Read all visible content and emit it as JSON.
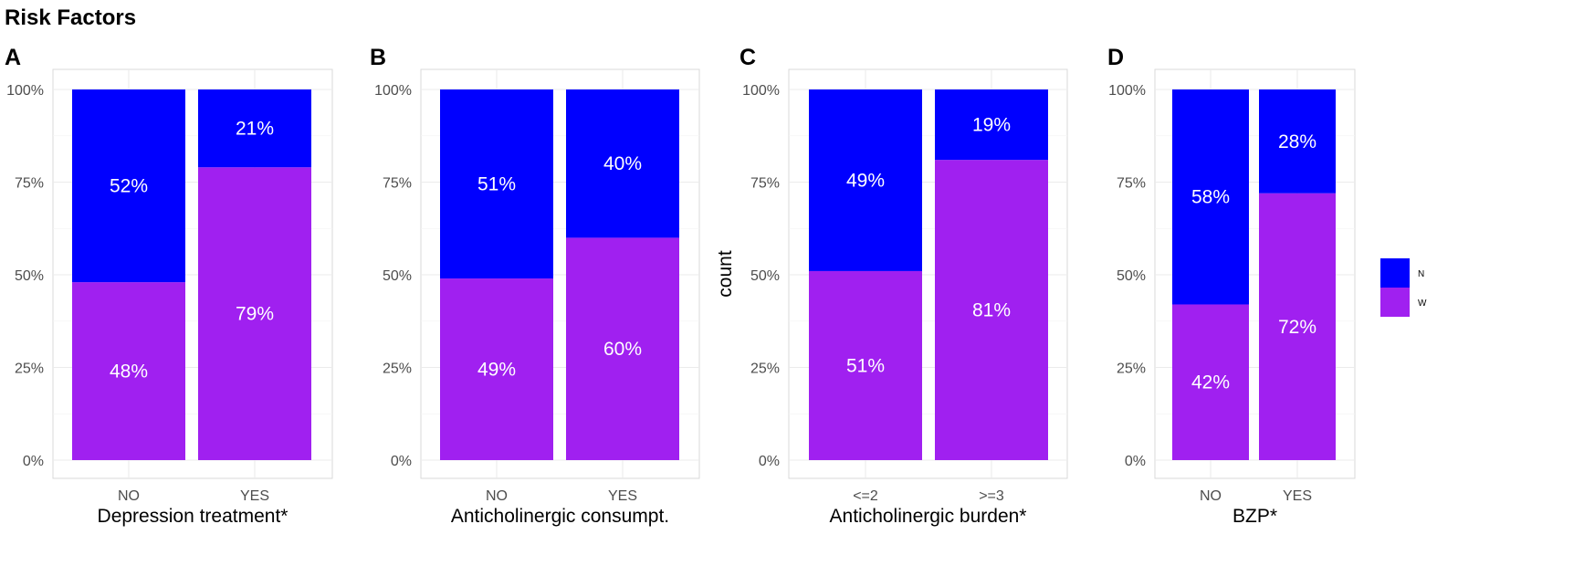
{
  "title": "Risk Factors",
  "legend": {
    "position": "right",
    "entries": [
      {
        "key": "N",
        "color": "#0000ff"
      },
      {
        "key": "W",
        "color": "#a020f0"
      }
    ]
  },
  "chart_data": [
    {
      "type": "bar",
      "stacked": true,
      "panel": "A",
      "xlabel": "Depression treatment*",
      "ylabel": "",
      "categories": [
        "NO",
        "YES"
      ],
      "series": [
        {
          "name": "W",
          "color": "#a020f0",
          "values": [
            48,
            79
          ],
          "labels": [
            "48%",
            "79%"
          ]
        },
        {
          "name": "N",
          "color": "#0000ff",
          "values": [
            52,
            21
          ],
          "labels": [
            "52%",
            "21%"
          ]
        }
      ],
      "ylim": [
        0,
        100
      ],
      "yticks": [
        "0%",
        "25%",
        "50%",
        "75%",
        "100%"
      ],
      "grid": true
    },
    {
      "type": "bar",
      "stacked": true,
      "panel": "B",
      "xlabel": "Anticholinergic consumpt.",
      "ylabel": "",
      "categories": [
        "NO",
        "YES"
      ],
      "series": [
        {
          "name": "W",
          "color": "#a020f0",
          "values": [
            49,
            60
          ],
          "labels": [
            "49%",
            "60%"
          ]
        },
        {
          "name": "N",
          "color": "#0000ff",
          "values": [
            51,
            40
          ],
          "labels": [
            "51%",
            "40%"
          ]
        }
      ],
      "ylim": [
        0,
        100
      ],
      "yticks": [
        "0%",
        "25%",
        "50%",
        "75%",
        "100%"
      ],
      "grid": true
    },
    {
      "type": "bar",
      "stacked": true,
      "panel": "C",
      "xlabel": "Anticholinergic burden*",
      "ylabel": "count",
      "categories": [
        "<=2",
        ">=3"
      ],
      "series": [
        {
          "name": "W",
          "color": "#a020f0",
          "values": [
            51,
            81
          ],
          "labels": [
            "51%",
            "81%"
          ]
        },
        {
          "name": "N",
          "color": "#0000ff",
          "values": [
            49,
            19
          ],
          "labels": [
            "49%",
            "19%"
          ]
        }
      ],
      "ylim": [
        0,
        100
      ],
      "yticks": [
        "0%",
        "25%",
        "50%",
        "75%",
        "100%"
      ],
      "grid": true
    },
    {
      "type": "bar",
      "stacked": true,
      "panel": "D",
      "xlabel": "BZP*",
      "ylabel": "",
      "categories": [
        "NO",
        "YES"
      ],
      "series": [
        {
          "name": "W",
          "color": "#a020f0",
          "values": [
            42,
            72
          ],
          "labels": [
            "42%",
            "72%"
          ]
        },
        {
          "name": "N",
          "color": "#0000ff",
          "values": [
            58,
            28
          ],
          "labels": [
            "58%",
            "28%"
          ]
        }
      ],
      "ylim": [
        0,
        100
      ],
      "yticks": [
        "0%",
        "25%",
        "50%",
        "75%",
        "100%"
      ],
      "grid": true
    }
  ]
}
